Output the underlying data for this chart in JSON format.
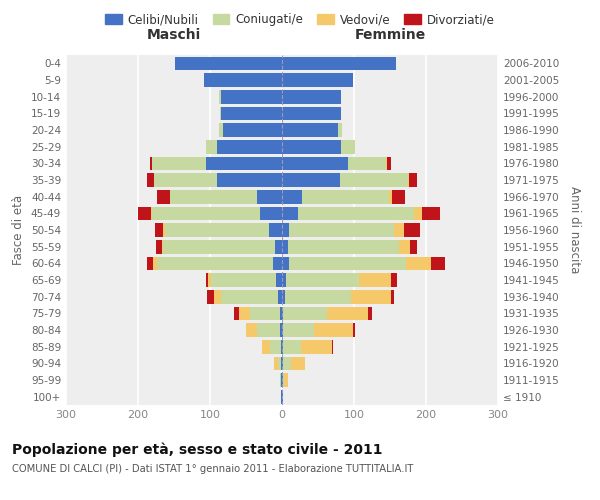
{
  "age_groups": [
    "100+",
    "95-99",
    "90-94",
    "85-89",
    "80-84",
    "75-79",
    "70-74",
    "65-69",
    "60-64",
    "55-59",
    "50-54",
    "45-49",
    "40-44",
    "35-39",
    "30-34",
    "25-29",
    "20-24",
    "15-19",
    "10-14",
    "5-9",
    "0-4"
  ],
  "birth_years": [
    "≤ 1910",
    "1911-1915",
    "1916-1920",
    "1921-1925",
    "1926-1930",
    "1931-1935",
    "1936-1940",
    "1941-1945",
    "1946-1950",
    "1951-1955",
    "1956-1960",
    "1961-1965",
    "1966-1970",
    "1971-1975",
    "1976-1980",
    "1981-1985",
    "1986-1990",
    "1991-1995",
    "1996-2000",
    "2001-2005",
    "2006-2010"
  ],
  "male": {
    "celibi": [
      1,
      1,
      1,
      1,
      3,
      3,
      5,
      8,
      12,
      10,
      18,
      30,
      35,
      90,
      105,
      90,
      82,
      85,
      85,
      108,
      148
    ],
    "coniugati": [
      0,
      2,
      5,
      15,
      32,
      42,
      80,
      90,
      162,
      155,
      145,
      150,
      120,
      88,
      75,
      15,
      5,
      1,
      2,
      0,
      0
    ],
    "vedovi": [
      0,
      0,
      5,
      12,
      15,
      15,
      10,
      5,
      5,
      2,
      2,
      2,
      0,
      0,
      0,
      0,
      0,
      0,
      0,
      0,
      0
    ],
    "divorziati": [
      0,
      0,
      0,
      0,
      0,
      6,
      9,
      2,
      8,
      8,
      12,
      18,
      18,
      10,
      4,
      0,
      0,
      0,
      0,
      0,
      0
    ]
  },
  "female": {
    "nubili": [
      1,
      1,
      2,
      2,
      2,
      2,
      4,
      5,
      10,
      8,
      10,
      22,
      28,
      80,
      92,
      82,
      78,
      82,
      82,
      98,
      158
    ],
    "coniugate": [
      0,
      2,
      10,
      25,
      42,
      60,
      92,
      102,
      162,
      155,
      145,
      162,
      120,
      95,
      52,
      20,
      5,
      0,
      0,
      0,
      0
    ],
    "vedove": [
      0,
      5,
      20,
      42,
      55,
      58,
      55,
      45,
      35,
      15,
      15,
      10,
      5,
      2,
      2,
      0,
      0,
      0,
      0,
      0,
      0
    ],
    "divorziate": [
      0,
      0,
      0,
      2,
      2,
      5,
      5,
      8,
      20,
      10,
      22,
      25,
      18,
      10,
      5,
      0,
      0,
      0,
      0,
      0,
      0
    ]
  },
  "colors": {
    "celibi": "#4472c4",
    "coniugati": "#c5d9a0",
    "vedovi": "#f5c96a",
    "divorziati": "#c0141b"
  },
  "legend_labels": [
    "Celibi/Nubili",
    "Coniugati/e",
    "Vedovi/e",
    "Divorziati/e"
  ],
  "title": "Popolazione per età, sesso e stato civile - 2011",
  "subtitle": "COMUNE DI CALCI (PI) - Dati ISTAT 1° gennaio 2011 - Elaborazione TUTTITALIA.IT",
  "label_maschi": "Maschi",
  "label_femmine": "Femmine",
  "ylabel_left": "Fasce di età",
  "ylabel_right": "Anni di nascita",
  "xlim": 300,
  "bg": "#ffffff",
  "ax_bg": "#eeeeee",
  "grid_color": "#ffffff",
  "tick_color": "#888888",
  "label_color": "#666666"
}
